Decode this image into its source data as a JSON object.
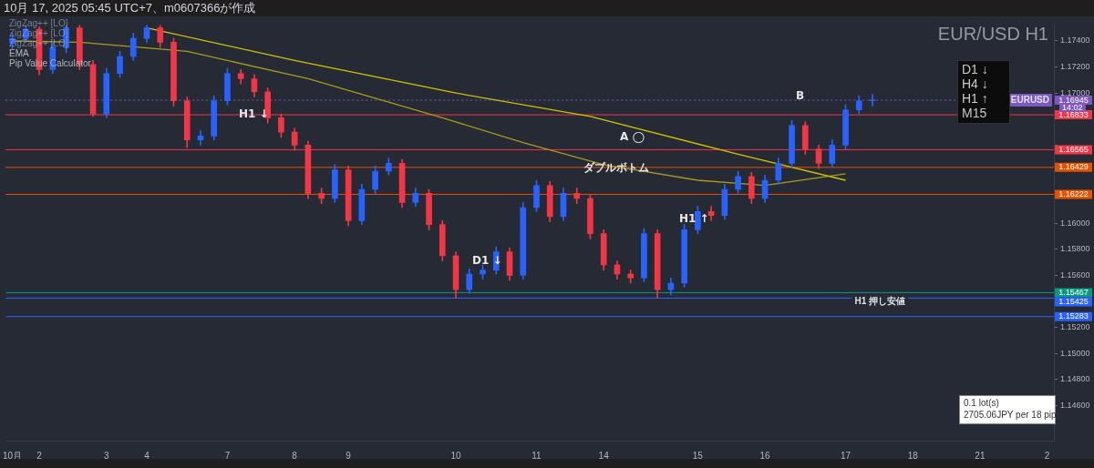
{
  "chart_data": {
    "type": "candlestick",
    "title": "EUR/USD H1",
    "annotations": [
      "10月 17, 2025 05:45 UTC+7、m0607366が作成",
      "ZigZag++ [LO]",
      "ZigZag++ [LO]",
      "ZigZag++ [LO]",
      "EMA",
      "Pip Value Calculator",
      "D1 ↓",
      "H4 ↓",
      "H1 ↑",
      "M15",
      "0.1 lot(s)",
      "2705.06JPY per 18 pips",
      "14:02",
      "H1 ↓",
      "D1 ↓",
      "ダブルボトム",
      "A ◯",
      "B",
      "H1 ↑",
      "1.16945",
      "1.16833",
      "1.16565",
      "1.16429",
      "1.16222",
      "1.15467",
      "1.15425",
      "1.15283"
    ],
    "categories": [
      "10月",
      null,
      "2",
      null,
      null,
      null,
      null,
      "3",
      null,
      null,
      "4",
      null,
      null,
      null,
      null,
      null,
      "7",
      null,
      null,
      null,
      null,
      "8",
      null,
      null,
      null,
      "9",
      null,
      null,
      null,
      null,
      null,
      null,
      null,
      "10",
      null,
      null,
      null,
      null,
      null,
      "11",
      null,
      null,
      null,
      null,
      "14",
      null,
      null,
      null,
      null,
      null,
      null,
      "15",
      null,
      null,
      null,
      null,
      "16",
      null,
      null,
      null,
      null,
      null,
      "17",
      null,
      null,
      null,
      null,
      "18",
      null,
      null,
      null,
      null,
      "21",
      null,
      null,
      null,
      null,
      "2"
    ],
    "series": [
      {
        "ohlc": [
          [
            1.1738,
            1.1746,
            1.1734,
            1.1742
          ],
          [
            1.1742,
            1.1752,
            1.1739,
            1.1749
          ],
          [
            1.1749,
            1.1751,
            1.1714,
            1.1718
          ],
          [
            1.1718,
            1.1739,
            1.1715,
            1.1735
          ],
          [
            1.1735,
            1.1752,
            1.1731,
            1.175
          ],
          [
            1.175,
            1.1752,
            1.1718,
            1.1722
          ],
          [
            1.1722,
            1.1725,
            1.1682,
            1.1684
          ],
          [
            1.1684,
            1.1719,
            1.1681,
            1.1715
          ],
          [
            1.1715,
            1.1732,
            1.1712,
            1.1728
          ],
          [
            1.1728,
            1.1746,
            1.1725,
            1.1742
          ],
          [
            1.1742,
            1.1752,
            1.1739,
            1.175
          ],
          [
            1.175,
            1.1752,
            1.1735,
            1.1739
          ],
          [
            1.1739,
            1.1742,
            1.169,
            1.1694
          ],
          [
            1.1694,
            1.1697,
            1.1658,
            1.1664
          ],
          [
            1.1664,
            1.1671,
            1.166,
            1.1667
          ],
          [
            1.1667,
            1.1698,
            1.1664,
            1.1694
          ],
          [
            1.1694,
            1.1719,
            1.1691,
            1.1715
          ],
          [
            1.1715,
            1.1718,
            1.1707,
            1.1711
          ],
          [
            1.1711,
            1.1714,
            1.1697,
            1.1701
          ],
          [
            1.1701,
            1.1704,
            1.1677,
            1.1681
          ],
          [
            1.1681,
            1.1684,
            1.1666,
            1.167
          ],
          [
            1.167,
            1.1673,
            1.1656,
            1.166
          ],
          [
            1.166,
            1.1663,
            1.1619,
            1.1623
          ],
          [
            1.1623,
            1.1627,
            1.1615,
            1.1619
          ],
          [
            1.1619,
            1.1645,
            1.1616,
            1.1641
          ],
          [
            1.1641,
            1.1644,
            1.1598,
            1.1602
          ],
          [
            1.1602,
            1.163,
            1.1599,
            1.1626
          ],
          [
            1.1626,
            1.1644,
            1.1623,
            1.164
          ],
          [
            1.164,
            1.165,
            1.1637,
            1.1646
          ],
          [
            1.1646,
            1.1649,
            1.1612,
            1.1616
          ],
          [
            1.1616,
            1.1627,
            1.1613,
            1.1623
          ],
          [
            1.1623,
            1.1626,
            1.1595,
            1.1599
          ],
          [
            1.1599,
            1.1602,
            1.1571,
            1.1575
          ],
          [
            1.1575,
            1.1578,
            1.15425,
            1.1549
          ],
          [
            1.1549,
            1.1565,
            1.1546,
            1.1561
          ],
          [
            1.1561,
            1.1568,
            1.1557,
            1.1564
          ],
          [
            1.1564,
            1.1582,
            1.1561,
            1.1578
          ],
          [
            1.1578,
            1.1581,
            1.1556,
            1.156
          ],
          [
            1.156,
            1.1616,
            1.1557,
            1.1612
          ],
          [
            1.1612,
            1.1633,
            1.1609,
            1.1629
          ],
          [
            1.1629,
            1.1632,
            1.1601,
            1.1605
          ],
          [
            1.1605,
            1.1627,
            1.1602,
            1.1623
          ],
          [
            1.1623,
            1.1627,
            1.1615,
            1.1619
          ],
          [
            1.1619,
            1.1622,
            1.1588,
            1.1592
          ],
          [
            1.1592,
            1.1595,
            1.1564,
            1.1568
          ],
          [
            1.1568,
            1.1571,
            1.1557,
            1.1561
          ],
          [
            1.1561,
            1.1564,
            1.1554,
            1.1558
          ],
          [
            1.1558,
            1.1596,
            1.1555,
            1.1592
          ],
          [
            1.1592,
            1.1595,
            1.15425,
            1.1549
          ],
          [
            1.1549,
            1.1558,
            1.1545,
            1.1554
          ],
          [
            1.1554,
            1.1599,
            1.1551,
            1.1595
          ],
          [
            1.1595,
            1.1613,
            1.1592,
            1.1609
          ],
          [
            1.1609,
            1.1613,
            1.1602,
            1.1606
          ],
          [
            1.1606,
            1.163,
            1.1603,
            1.1626
          ],
          [
            1.1626,
            1.164,
            1.1623,
            1.1636
          ],
          [
            1.1636,
            1.1639,
            1.1615,
            1.1619
          ],
          [
            1.1619,
            1.1637,
            1.1616,
            1.1633
          ],
          [
            1.1633,
            1.165,
            1.163,
            1.1646
          ],
          [
            1.1646,
            1.1679,
            1.1643,
            1.1675
          ],
          [
            1.1675,
            1.1678,
            1.1653,
            1.1657
          ],
          [
            1.1657,
            1.166,
            1.1642,
            1.1646
          ],
          [
            1.1646,
            1.1664,
            1.1643,
            1.166
          ],
          [
            1.166,
            1.1691,
            1.1657,
            1.1687
          ],
          [
            1.1687,
            1.1698,
            1.1684,
            1.1694
          ],
          [
            1.1694,
            1.1699,
            1.169,
            1.16945
          ],
          null,
          null,
          null,
          null,
          null,
          null,
          null,
          null,
          null,
          null,
          null,
          null,
          null
        ],
        "colors": [
          "#2962ff",
          "#2962ff",
          "#f23645",
          "#2962ff",
          "#2962ff",
          "#f23645",
          "#f23645",
          "#2962ff",
          "#2962ff",
          "#2962ff",
          "#2962ff",
          "#f23645",
          "#f23645",
          "#f23645",
          "#2962ff",
          "#2962ff",
          "#2962ff",
          "#f23645",
          "#f23645",
          "#f23645",
          "#f23645",
          "#f23645",
          "#f23645",
          "#f23645",
          "#2962ff",
          "#f23645",
          "#2962ff",
          "#2962ff",
          "#2962ff",
          "#f23645",
          "#2962ff",
          "#f23645",
          "#f23645",
          "#f23645",
          "#2962ff",
          "#2962ff",
          "#2962ff",
          "#f23645",
          "#2962ff",
          "#2962ff",
          "#f23645",
          "#2962ff",
          "#f23645",
          "#f23645",
          "#f23645",
          "#f23645",
          "#f23645",
          "#2962ff",
          "#f23645",
          "#2962ff",
          "#2962ff",
          "#2962ff",
          "#f23645",
          "#2962ff",
          "#2962ff",
          "#f23645",
          "#2962ff",
          "#2962ff",
          "#2962ff",
          "#f23645",
          "#f23645",
          "#2962ff",
          "#2962ff",
          "#2962ff",
          "#2962ff",
          null,
          null,
          null,
          null,
          null,
          null,
          null,
          null,
          null,
          null,
          null,
          null,
          null
        ]
      },
      {
        "type": "line",
        "color": "#d4c000",
        "values": [
          null,
          null,
          null,
          null,
          null,
          null,
          null,
          null,
          null,
          null,
          1.175,
          null,
          null,
          null,
          null,
          null,
          null,
          null,
          null,
          null,
          null,
          1.1725,
          null,
          null,
          null,
          null,
          null,
          null,
          null,
          null,
          null,
          null,
          null,
          1.17,
          null,
          null,
          null,
          null,
          null,
          null,
          null,
          null,
          null,
          1.1682,
          null,
          null,
          null,
          null,
          null,
          null,
          null,
          null,
          null,
          null,
          1.1653,
          null,
          null,
          null,
          null,
          null,
          null,
          null,
          1.1633,
          null,
          null,
          null,
          null,
          null,
          null,
          null,
          null,
          null,
          null,
          null,
          null,
          null,
          null,
          null
        ]
      },
      {
        "type": "line",
        "color": "#a89a1e",
        "values": [
          1.174,
          null,
          null,
          null,
          null,
          1.1739,
          null,
          null,
          null,
          null,
          null,
          null,
          null,
          1.1732,
          null,
          null,
          null,
          null,
          null,
          null,
          null,
          null,
          1.1711,
          null,
          null,
          null,
          null,
          null,
          null,
          null,
          null,
          null,
          1.1681,
          null,
          null,
          null,
          null,
          null,
          1.1662,
          null,
          null,
          null,
          null,
          null,
          1.1645,
          null,
          null,
          null,
          null,
          null,
          null,
          1.1633,
          null,
          null,
          null,
          null,
          1.1629,
          null,
          null,
          null,
          null,
          null,
          1.1638,
          null,
          null,
          null,
          null,
          null,
          null,
          null,
          null,
          null,
          null,
          null,
          null,
          null,
          null,
          null
        ]
      }
    ],
    "ref_lines": [
      {
        "axis": "y",
        "value": 1.16945,
        "label": "EURUSD",
        "color": "#7e57c2",
        "line_style": "dotted"
      },
      {
        "axis": "y",
        "value": 1.16833,
        "color": "#f23645",
        "line_style": "solid"
      },
      {
        "axis": "y",
        "value": 1.16565,
        "color": "#f23645",
        "line_style": "solid"
      },
      {
        "axis": "y",
        "value": 1.16429,
        "color": "#e65100",
        "line_style": "solid"
      },
      {
        "axis": "y",
        "value": 1.16222,
        "color": "#e65100",
        "line_style": "solid"
      },
      {
        "axis": "y",
        "value": 1.15467,
        "color": "#089981",
        "line_style": "solid"
      },
      {
        "axis": "y",
        "value": 1.15425,
        "label": "H1 押し安値",
        "color": "#2962ff",
        "line_style": "solid"
      },
      {
        "axis": "y",
        "value": 1.15283,
        "color": "#2962ff",
        "line_style": "solid"
      }
    ],
    "ylim": [
      1.1433,
      1.1753
    ],
    "yticks": [
      {
        "value": 1.146,
        "label": "1.14600"
      },
      {
        "value": 1.148,
        "label": "1.14800"
      },
      {
        "value": 1.15,
        "label": "1.15000"
      },
      {
        "value": 1.152,
        "label": "1.15200"
      },
      {
        "value": 1.154,
        "label": null
      },
      {
        "value": 1.156,
        "label": "1.15600"
      },
      {
        "value": 1.158,
        "label": "1.15800"
      },
      {
        "value": 1.16,
        "label": "1.16000"
      },
      {
        "value": 1.162,
        "label": null
      },
      {
        "value": 1.164,
        "label": null
      },
      {
        "value": 1.166,
        "label": null
      },
      {
        "value": 1.168,
        "label": null
      },
      {
        "value": 1.17,
        "label": "1.17000"
      },
      {
        "value": 1.172,
        "label": "1.17200"
      },
      {
        "value": 1.174,
        "label": "1.17400"
      }
    ]
  }
}
